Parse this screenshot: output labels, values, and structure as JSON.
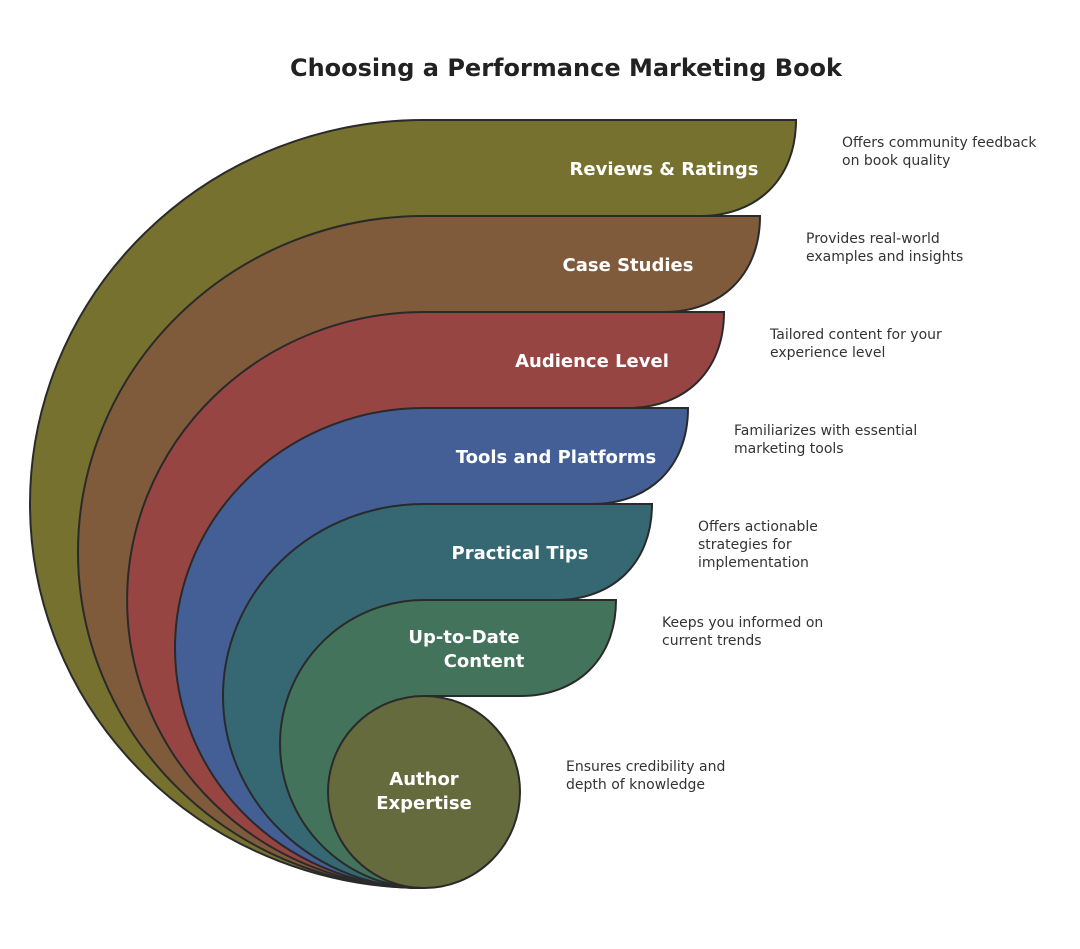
{
  "title": "Choosing a Performance Marketing Book",
  "layers": [
    {
      "label": [
        "Reviews & Ratings"
      ],
      "description": [
        "Offers community feedback",
        "on book quality"
      ]
    },
    {
      "label": [
        "Case Studies"
      ],
      "description": [
        "Provides real-world",
        "examples and insights"
      ]
    },
    {
      "label": [
        "Audience Level"
      ],
      "description": [
        "Tailored content for your",
        "experience level"
      ]
    },
    {
      "label": [
        "Tools and Platforms"
      ],
      "description": [
        "Familiarizes with essential",
        "marketing tools"
      ]
    },
    {
      "label": [
        "Practical Tips"
      ],
      "description": [
        "Offers actionable",
        "strategies for",
        "implementation"
      ]
    },
    {
      "label": [
        "Up-to-Date",
        "Content"
      ],
      "description": [
        "Keeps you informed on",
        "current trends"
      ]
    },
    {
      "label": [
        "Author",
        "Expertise"
      ],
      "description": [
        "Ensures credibility and",
        "depth of knowledge"
      ]
    }
  ]
}
